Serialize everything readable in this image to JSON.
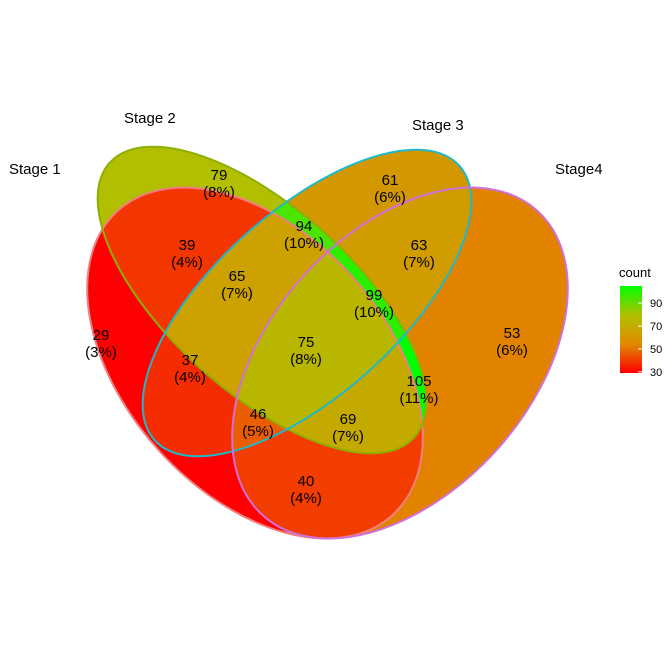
{
  "chart_data": {
    "type": "venn",
    "sets": [
      "Stage 1",
      "Stage 2",
      "Stage 3",
      "Stage4"
    ],
    "regions": [
      {
        "sets": [
          "Stage 1"
        ],
        "count": 29,
        "percent": "(3%)"
      },
      {
        "sets": [
          "Stage 2"
        ],
        "count": 79,
        "percent": "(8%)"
      },
      {
        "sets": [
          "Stage 3"
        ],
        "count": 61,
        "percent": "(6%)"
      },
      {
        "sets": [
          "Stage4"
        ],
        "count": 53,
        "percent": "(6%)"
      },
      {
        "sets": [
          "Stage 1",
          "Stage 2"
        ],
        "count": 39,
        "percent": "(4%)"
      },
      {
        "sets": [
          "Stage 2",
          "Stage 3"
        ],
        "count": 94,
        "percent": "(10%)"
      },
      {
        "sets": [
          "Stage 3",
          "Stage4"
        ],
        "count": 63,
        "percent": "(7%)"
      },
      {
        "sets": [
          "Stage 1",
          "Stage 2",
          "Stage 3"
        ],
        "count": 65,
        "percent": "(7%)"
      },
      {
        "sets": [
          "Stage 2",
          "Stage 3",
          "Stage4"
        ],
        "count": 99,
        "percent": "(10%)"
      },
      {
        "sets": [
          "Stage 1",
          "Stage 3"
        ],
        "count": 37,
        "percent": "(4%)"
      },
      {
        "sets": [
          "Stage 1",
          "Stage 2",
          "Stage 3",
          "Stage4"
        ],
        "count": 75,
        "percent": "(8%)"
      },
      {
        "sets": [
          "Stage 2",
          "Stage4"
        ],
        "count": 105,
        "percent": "(11%)"
      },
      {
        "sets": [
          "Stage 1",
          "Stage 3",
          "Stage4"
        ],
        "count": 46,
        "percent": "(5%)"
      },
      {
        "sets": [
          "Stage 1",
          "Stage 2",
          "Stage4"
        ],
        "count": 69,
        "percent": "(7%)"
      },
      {
        "sets": [
          "Stage 1",
          "Stage4"
        ],
        "count": 40,
        "percent": "(4%)"
      }
    ],
    "legend": {
      "title": "count",
      "ticks": [
        30,
        50,
        70,
        90
      ],
      "range": [
        29,
        105
      ],
      "colors": [
        "#ff0000",
        "#e08a00",
        "#b0c000",
        "#00ff00"
      ],
      "placement": "right"
    },
    "set_outline_colors": [
      "#f08080",
      "#8cb000",
      "#20b8c8",
      "#d070d8"
    ]
  }
}
